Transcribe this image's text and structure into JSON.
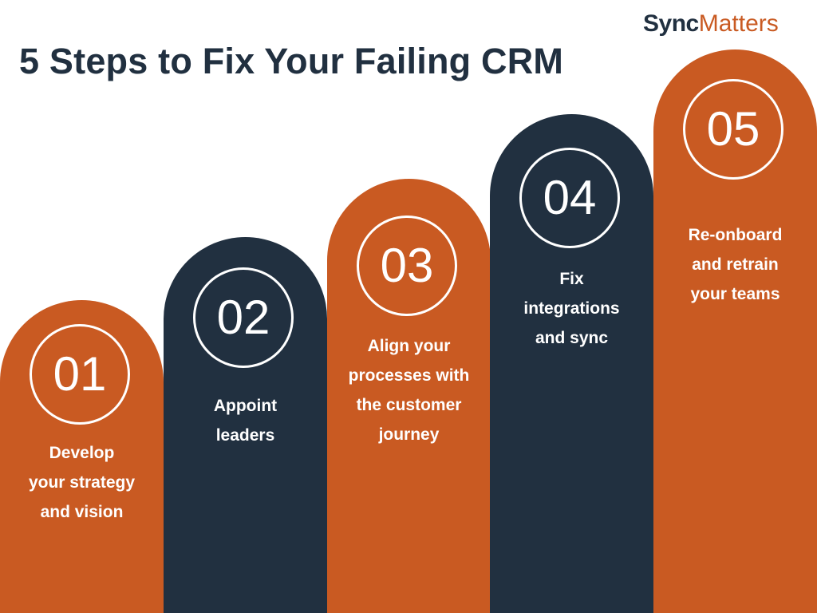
{
  "title": "5 Steps to Fix Your Failing CRM",
  "logo": {
    "part1": "Sync",
    "part2": "Matters"
  },
  "colors": {
    "orange": "#c95a22",
    "navy": "#213040",
    "text": "#ffffff"
  },
  "steps": [
    {
      "number": "01",
      "label": "Develop\nyour strategy\nand vision",
      "color": "orange"
    },
    {
      "number": "02",
      "label": "Appoint\nleaders",
      "color": "navy"
    },
    {
      "number": "03",
      "label": "Align your\nprocesses with\nthe customer\njourney",
      "color": "orange"
    },
    {
      "number": "04",
      "label": "Fix\nintegrations\nand sync",
      "color": "navy"
    },
    {
      "number": "05",
      "label": "Re-onboard\nand retrain\nyour teams",
      "color": "orange"
    }
  ]
}
